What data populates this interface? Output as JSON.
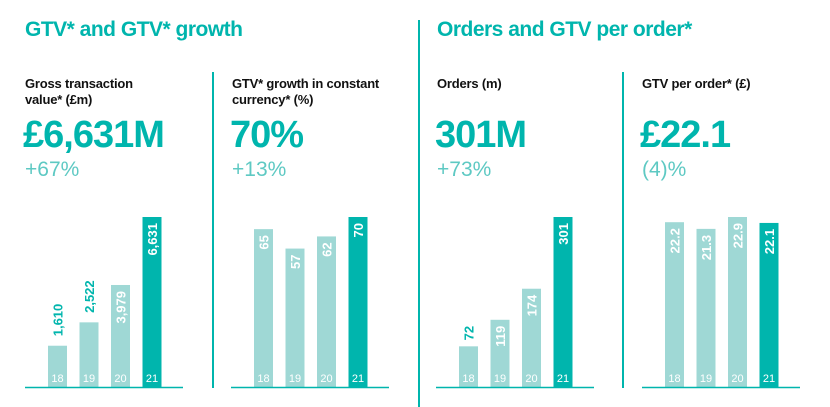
{
  "colors": {
    "accent": "#00b5ad",
    "light_bar": "#9fd8d5",
    "growth_text": "#5ec9c3"
  },
  "sections": [
    {
      "title": "GTV* and GTV* growth"
    },
    {
      "title": "Orders and GTV per order*"
    }
  ],
  "panels": [
    {
      "subtitle": "Gross transaction\nvalue* (£m)",
      "value": "£6,631M",
      "change": "+67%"
    },
    {
      "subtitle": "GTV* growth in constant\ncurrency* (%)",
      "value": "70%",
      "change": "+13%"
    },
    {
      "subtitle": "Orders (m)",
      "value": "301M",
      "change": "+73%"
    },
    {
      "subtitle": "GTV per order* (£)",
      "value": "£22.1",
      "change": "(4)%"
    }
  ],
  "chart_data": [
    {
      "type": "bar",
      "categories": [
        "18",
        "19",
        "20",
        "21"
      ],
      "values": [
        1610,
        2522,
        3979,
        6631
      ],
      "labels": [
        "1,610",
        "2,522",
        "3,979",
        "6,631"
      ],
      "ylim": [
        0,
        6631
      ],
      "highlight": "21"
    },
    {
      "type": "bar",
      "categories": [
        "18",
        "19",
        "20",
        "21"
      ],
      "values": [
        65,
        57,
        62,
        70
      ],
      "labels": [
        "65",
        "57",
        "62",
        "70"
      ],
      "ylim": [
        0,
        70
      ],
      "highlight": "21"
    },
    {
      "type": "bar",
      "categories": [
        "18",
        "19",
        "20",
        "21"
      ],
      "values": [
        72,
        119,
        174,
        301
      ],
      "labels": [
        "72",
        "119",
        "174",
        "301"
      ],
      "ylim": [
        0,
        301
      ],
      "highlight": "21"
    },
    {
      "type": "bar",
      "categories": [
        "18",
        "19",
        "20",
        "21"
      ],
      "values": [
        22.2,
        21.3,
        22.9,
        22.1
      ],
      "labels": [
        "22.2",
        "21.3",
        "22.9",
        "22.1"
      ],
      "ylim": [
        0,
        22.9
      ],
      "highlight": "21"
    }
  ]
}
